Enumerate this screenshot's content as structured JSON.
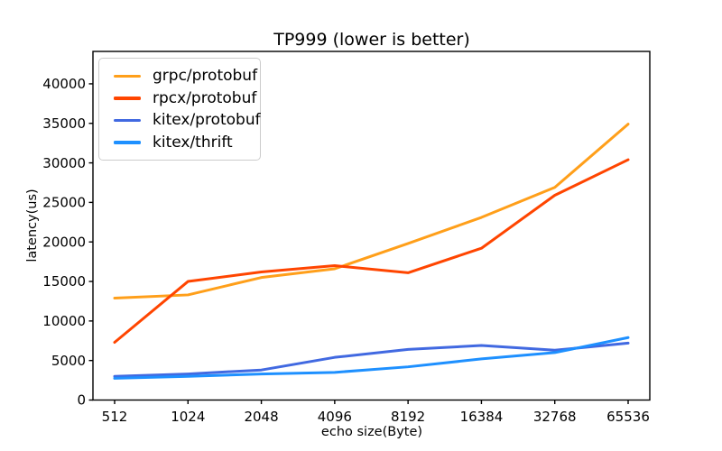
{
  "chart_data": {
    "type": "line",
    "title": "TP999 (lower is better)",
    "xlabel": "echo size(Byte)",
    "ylabel": "latency(us)",
    "categories": [
      "512",
      "1024",
      "2048",
      "4096",
      "8192",
      "16384",
      "32768",
      "65536"
    ],
    "series": [
      {
        "name": "grpc/protobuf",
        "color": "#FF9F1A",
        "values": [
          12900,
          13300,
          15500,
          16600,
          19800,
          23100,
          26900,
          34900
        ]
      },
      {
        "name": "rpcx/protobuf",
        "color": "#FF4500",
        "values": [
          7300,
          15000,
          16200,
          17000,
          16100,
          19200,
          25900,
          30400
        ]
      },
      {
        "name": "kitex/protobuf",
        "color": "#4169E1",
        "values": [
          3000,
          3300,
          3800,
          5400,
          6400,
          6900,
          6300,
          7200
        ]
      },
      {
        "name": "kitex/thrift",
        "color": "#1E90FF",
        "values": [
          2750,
          3000,
          3300,
          3500,
          4200,
          5200,
          6000,
          7900
        ]
      }
    ],
    "yticks": [
      0,
      5000,
      10000,
      15000,
      20000,
      25000,
      30000,
      35000,
      40000
    ],
    "ylim": [
      0,
      44100
    ],
    "grid": false,
    "legend_position": "upper left",
    "axis_color": "#000000",
    "background_color": "#ffffff"
  }
}
